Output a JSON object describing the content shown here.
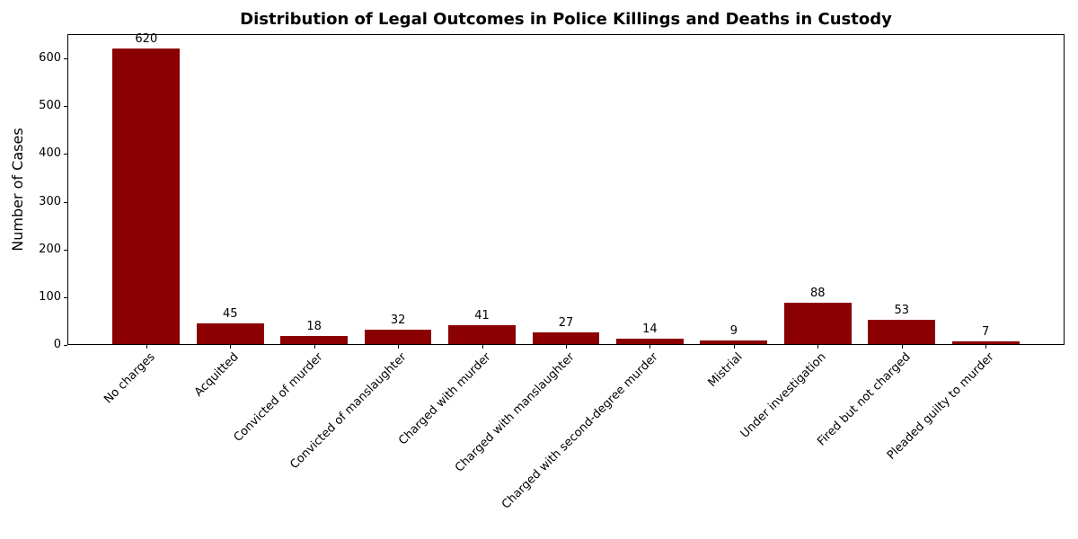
{
  "chart_data": {
    "type": "bar",
    "title": "Distribution of Legal Outcomes in Police Killings and Deaths in Custody",
    "xlabel": "",
    "ylabel": "Number of Cases",
    "categories": [
      "No charges",
      "Acquitted",
      "Convicted of murder",
      "Convicted of manslaughter",
      "Charged with murder",
      "Charged with manslaughter",
      "Charged with second-degree murder",
      "Mistrial",
      "Under investigation",
      "Fired but not charged",
      "Pleaded guilty to murder"
    ],
    "values": [
      620,
      45,
      18,
      32,
      41,
      27,
      14,
      9,
      88,
      53,
      7
    ],
    "value_labels_shown": true,
    "yticks": [
      0,
      100,
      200,
      300,
      400,
      500,
      600
    ],
    "ylim": [
      0,
      651
    ],
    "x_tick_rotation_deg": 45,
    "grid": false,
    "legend": "none",
    "bar_color": "#8B0000",
    "axis_color": "#000000",
    "text_color": "#000000",
    "background_color": "#ffffff"
  }
}
